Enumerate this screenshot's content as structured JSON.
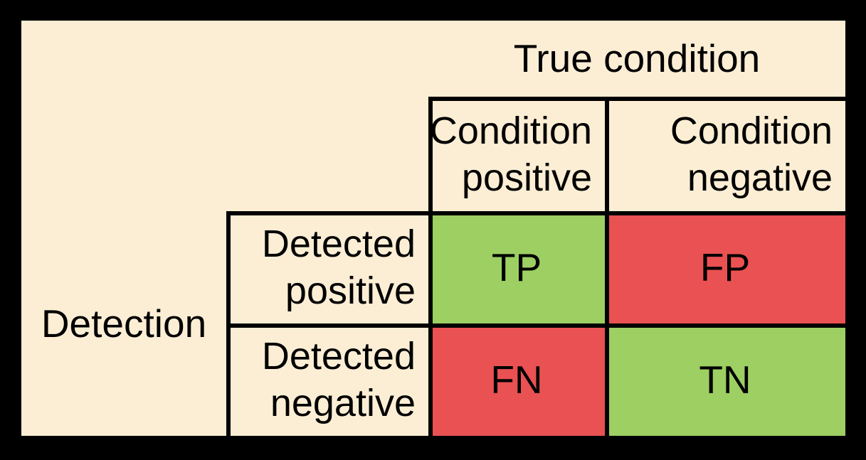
{
  "colors": {
    "background": "#000000",
    "panel": "#FCEED4",
    "positive_cell": "#9DCF62",
    "negative_cell": "#EA5152",
    "gridline": "#000000",
    "text": "#000000"
  },
  "matrix": {
    "column_axis_title": "True condition",
    "row_axis_title": "Detection",
    "column_headers": [
      {
        "line1": "Condition",
        "line2": "positive"
      },
      {
        "line1": "Condition",
        "line2": "negative"
      }
    ],
    "row_headers": [
      {
        "line1": "Detected",
        "line2": "positive"
      },
      {
        "line1": "Detected",
        "line2": "negative"
      }
    ],
    "cells": {
      "tp": {
        "label": "TP",
        "outcome": "positive"
      },
      "fp": {
        "label": "FP",
        "outcome": "negative"
      },
      "fn": {
        "label": "FN",
        "outcome": "negative"
      },
      "tn": {
        "label": "TN",
        "outcome": "positive"
      }
    }
  }
}
